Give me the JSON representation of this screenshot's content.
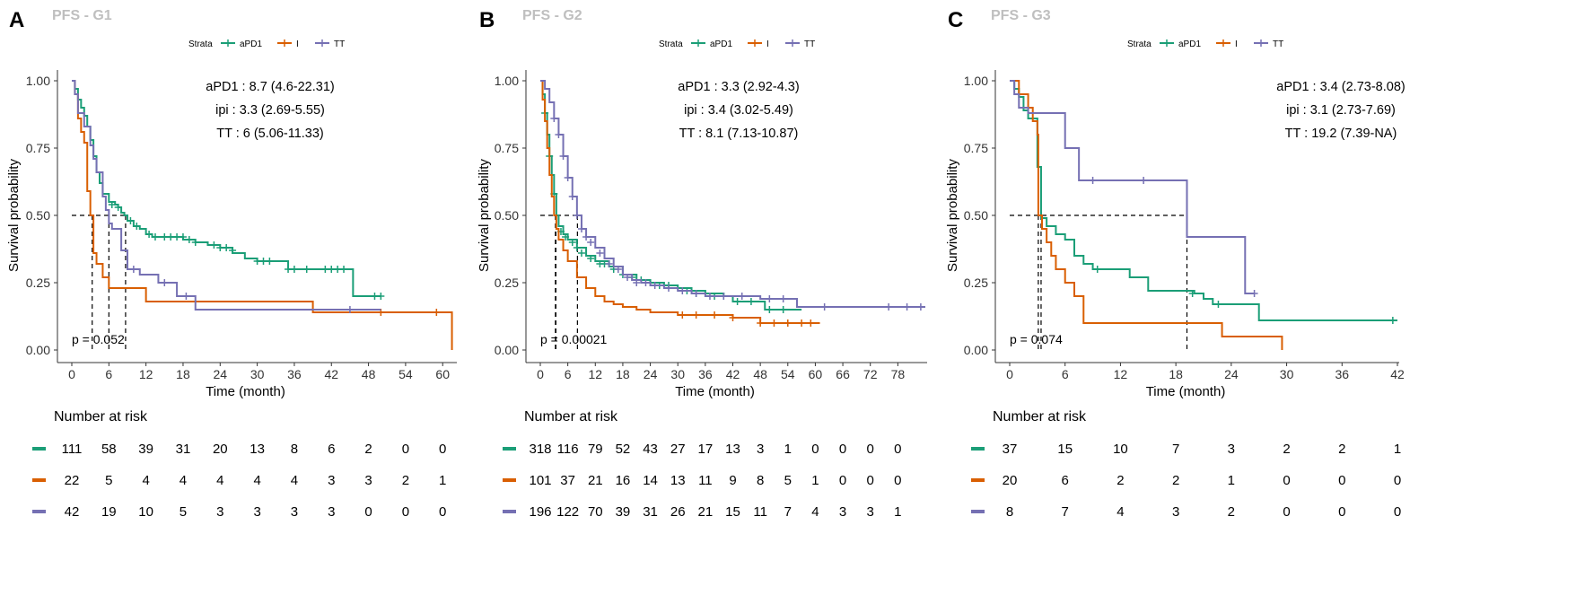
{
  "colors": {
    "aPD1": "#1b9e77",
    "I": "#d95f02",
    "TT": "#7570b3",
    "axis": "#333333",
    "panel_title": "#bfbfbf"
  },
  "chart_data": [
    {
      "type": "line",
      "panel_letter": "A",
      "title": "PFS - G1",
      "legend_title": "Strata",
      "xlabel": "Time (month)",
      "ylabel": "Survival probability",
      "xlim": [
        0,
        62
      ],
      "ylim": [
        0,
        1
      ],
      "xticks": [
        0,
        6,
        12,
        18,
        24,
        30,
        36,
        42,
        48,
        54,
        60
      ],
      "yticks": [
        0,
        0.25,
        0.5,
        0.75,
        1
      ],
      "ytick_labels": [
        "0.00",
        "0.25",
        "0.50",
        "0.75",
        "1.00"
      ],
      "annotations": [
        "aPD1 : 8.7 (4.6-22.31)",
        "ipi : 3.3 (2.69-5.55)",
        "TT : 6 (5.06-11.33)"
      ],
      "pvalue_text": "p = 0.052",
      "medians": [
        8.7,
        3.3,
        6
      ],
      "series": [
        {
          "name": "aPD1",
          "color_key": "aPD1",
          "x": [
            0,
            0.5,
            1,
            1.5,
            2,
            2.5,
            3,
            3.5,
            4,
            4.5,
            5,
            6,
            7,
            7.5,
            8,
            8.5,
            9,
            10,
            11,
            12,
            13,
            14,
            16,
            18,
            20,
            22,
            24,
            26,
            28,
            30,
            32,
            34,
            35,
            40,
            45,
            45.5,
            50
          ],
          "y": [
            1,
            0.97,
            0.93,
            0.9,
            0.87,
            0.83,
            0.78,
            0.72,
            0.66,
            0.62,
            0.58,
            0.55,
            0.54,
            0.53,
            0.51,
            0.5,
            0.48,
            0.46,
            0.45,
            0.43,
            0.42,
            0.42,
            0.42,
            0.41,
            0.4,
            0.39,
            0.38,
            0.36,
            0.34,
            0.33,
            0.33,
            0.33,
            0.3,
            0.3,
            0.3,
            0.2,
            0.2
          ],
          "censor_x": [
            6.5,
            7.5,
            9.5,
            10.5,
            12.5,
            13.5,
            15,
            16,
            17,
            18,
            19,
            20,
            23,
            24,
            25,
            26,
            30,
            31,
            32,
            35,
            36,
            38,
            41,
            42,
            43,
            44,
            49,
            50
          ],
          "censor_y": [
            0.54,
            0.53,
            0.48,
            0.46,
            0.43,
            0.42,
            0.42,
            0.42,
            0.42,
            0.42,
            0.41,
            0.4,
            0.39,
            0.38,
            0.38,
            0.37,
            0.33,
            0.33,
            0.33,
            0.3,
            0.3,
            0.3,
            0.3,
            0.3,
            0.3,
            0.3,
            0.2,
            0.2
          ]
        },
        {
          "name": "I",
          "color_key": "I",
          "x": [
            0,
            0.5,
            1,
            1.5,
            2,
            2.5,
            3,
            3.5,
            4,
            5,
            6,
            12,
            39,
            61,
            61.5
          ],
          "y": [
            1,
            0.95,
            0.86,
            0.81,
            0.77,
            0.59,
            0.5,
            0.36,
            0.32,
            0.27,
            0.23,
            0.18,
            0.14,
            0.14,
            0
          ],
          "censor_x": [
            50,
            59
          ],
          "censor_y": [
            0.14,
            0.14
          ]
        },
        {
          "name": "TT",
          "color_key": "TT",
          "x": [
            0,
            0.5,
            1,
            2,
            3,
            3.5,
            4,
            5,
            5.5,
            6,
            6.5,
            8,
            9,
            11,
            14,
            17,
            19,
            20,
            50
          ],
          "y": [
            1,
            0.95,
            0.88,
            0.83,
            0.76,
            0.71,
            0.66,
            0.57,
            0.52,
            0.47,
            0.45,
            0.37,
            0.3,
            0.28,
            0.25,
            0.2,
            0.2,
            0.15,
            0.15
          ],
          "censor_x": [
            10,
            15,
            18.5,
            45
          ],
          "censor_y": [
            0.3,
            0.25,
            0.2,
            0.15
          ]
        }
      ],
      "risk_table": {
        "title": "Number at risk",
        "times": [
          0,
          6,
          12,
          18,
          24,
          30,
          36,
          42,
          48,
          54,
          60
        ],
        "rows": [
          {
            "strata": "aPD1",
            "values": [
              111,
              58,
              39,
              31,
              20,
              13,
              8,
              6,
              2,
              0,
              0
            ]
          },
          {
            "strata": "I",
            "values": [
              22,
              5,
              4,
              4,
              4,
              4,
              4,
              3,
              3,
              2,
              1
            ]
          },
          {
            "strata": "TT",
            "values": [
              42,
              19,
              10,
              5,
              3,
              3,
              3,
              3,
              0,
              0,
              0
            ]
          }
        ]
      }
    },
    {
      "type": "line",
      "panel_letter": "B",
      "title": "PFS - G2",
      "legend_title": "Strata",
      "xlabel": "Time (month)",
      "ylabel": "Survival probability",
      "xlim": [
        0,
        84
      ],
      "ylim": [
        0,
        1
      ],
      "xticks": [
        0,
        6,
        12,
        18,
        24,
        30,
        36,
        42,
        48,
        54,
        60,
        66,
        72,
        78
      ],
      "yticks": [
        0,
        0.25,
        0.5,
        0.75,
        1
      ],
      "ytick_labels": [
        "0.00",
        "0.25",
        "0.50",
        "0.75",
        "1.00"
      ],
      "annotations": [
        "aPD1 : 3.3 (2.92-4.3)",
        "ipi : 3.4 (3.02-5.49)",
        "TT : 8.1 (7.13-10.87)"
      ],
      "pvalue_text": "p = 0.00021",
      "medians": [
        3.3,
        3.4,
        8.1
      ],
      "series": [
        {
          "name": "aPD1",
          "color_key": "aPD1",
          "x": [
            0,
            0.5,
            1,
            1.5,
            2,
            2.5,
            3,
            3.5,
            4,
            5,
            6,
            8,
            10,
            12,
            15,
            18,
            21,
            24,
            27,
            30,
            33,
            36,
            40,
            42,
            48,
            49,
            54,
            57
          ],
          "y": [
            1,
            0.95,
            0.88,
            0.8,
            0.72,
            0.65,
            0.58,
            0.5,
            0.46,
            0.43,
            0.41,
            0.38,
            0.35,
            0.33,
            0.31,
            0.28,
            0.26,
            0.25,
            0.24,
            0.23,
            0.22,
            0.21,
            0.2,
            0.18,
            0.18,
            0.15,
            0.15,
            0.15
          ],
          "censor_x": [
            1,
            2,
            3,
            4.5,
            5.5,
            7,
            8,
            9,
            11,
            13,
            14,
            16,
            18,
            20,
            22,
            24,
            26,
            28,
            30,
            32,
            34,
            36,
            38,
            40,
            43,
            46,
            50,
            53
          ],
          "censor_y": [
            0.88,
            0.72,
            0.58,
            0.44,
            0.42,
            0.4,
            0.38,
            0.36,
            0.34,
            0.32,
            0.32,
            0.3,
            0.28,
            0.27,
            0.26,
            0.25,
            0.24,
            0.24,
            0.23,
            0.22,
            0.21,
            0.21,
            0.2,
            0.2,
            0.18,
            0.18,
            0.15,
            0.15
          ]
        },
        {
          "name": "I",
          "color_key": "I",
          "x": [
            0,
            0.5,
            1,
            1.5,
            2,
            2.5,
            3,
            3.5,
            4,
            5,
            6,
            8,
            10,
            12,
            14,
            16,
            18,
            21,
            24,
            30,
            36,
            42,
            48,
            55,
            61
          ],
          "y": [
            1,
            0.93,
            0.85,
            0.75,
            0.65,
            0.57,
            0.5,
            0.45,
            0.41,
            0.37,
            0.33,
            0.27,
            0.23,
            0.2,
            0.18,
            0.17,
            0.16,
            0.15,
            0.14,
            0.13,
            0.13,
            0.12,
            0.1,
            0.1,
            0.1
          ],
          "censor_x": [
            31,
            34,
            38,
            42,
            48,
            51,
            54,
            57,
            59
          ],
          "censor_y": [
            0.13,
            0.13,
            0.13,
            0.12,
            0.1,
            0.1,
            0.1,
            0.1,
            0.1
          ]
        },
        {
          "name": "TT",
          "color_key": "TT",
          "x": [
            0,
            1,
            2,
            3,
            4,
            5,
            6,
            7,
            8,
            9,
            10,
            12,
            14,
            16,
            18,
            20,
            22,
            24,
            27,
            30,
            33,
            36,
            42,
            48,
            56,
            60,
            70,
            84
          ],
          "y": [
            1,
            0.97,
            0.92,
            0.86,
            0.8,
            0.72,
            0.64,
            0.57,
            0.5,
            0.45,
            0.42,
            0.38,
            0.34,
            0.31,
            0.28,
            0.26,
            0.25,
            0.24,
            0.23,
            0.22,
            0.21,
            0.2,
            0.2,
            0.19,
            0.16,
            0.16,
            0.16,
            0.16
          ],
          "censor_x": [
            3,
            4,
            5,
            6,
            7,
            8,
            9,
            10,
            11,
            13,
            15,
            17,
            19,
            21,
            23,
            25,
            28,
            31,
            34,
            37,
            40,
            44,
            50,
            53,
            62,
            76,
            80,
            83
          ],
          "censor_y": [
            0.86,
            0.8,
            0.72,
            0.64,
            0.57,
            0.5,
            0.45,
            0.42,
            0.4,
            0.36,
            0.32,
            0.3,
            0.27,
            0.25,
            0.25,
            0.24,
            0.23,
            0.22,
            0.21,
            0.2,
            0.2,
            0.2,
            0.19,
            0.19,
            0.16,
            0.16,
            0.16,
            0.16
          ]
        }
      ],
      "risk_table": {
        "title": "Number at risk",
        "times": [
          0,
          6,
          12,
          18,
          24,
          30,
          36,
          42,
          48,
          54,
          60,
          66,
          72,
          78
        ],
        "rows": [
          {
            "strata": "aPD1",
            "values": [
              318,
              116,
              79,
              52,
              43,
              27,
              17,
              13,
              3,
              1,
              0,
              0,
              0,
              0
            ]
          },
          {
            "strata": "I",
            "values": [
              101,
              37,
              21,
              16,
              14,
              13,
              11,
              9,
              8,
              5,
              1,
              0,
              0,
              0
            ]
          },
          {
            "strata": "TT",
            "values": [
              196,
              122,
              70,
              39,
              31,
              26,
              21,
              15,
              11,
              7,
              4,
              3,
              3,
              1
            ]
          }
        ]
      }
    },
    {
      "type": "line",
      "panel_letter": "C",
      "title": "PFS - G3",
      "legend_title": "Strata",
      "xlabel": "Time (month)",
      "ylabel": "Survival probability",
      "xlim": [
        0,
        42
      ],
      "ylim": [
        0,
        1
      ],
      "xticks": [
        0,
        6,
        12,
        18,
        24,
        30,
        36,
        42
      ],
      "yticks": [
        0,
        0.25,
        0.5,
        0.75,
        1
      ],
      "ytick_labels": [
        "0.00",
        "0.25",
        "0.50",
        "0.75",
        "1.00"
      ],
      "annotations": [
        "aPD1 : 3.4 (2.73-8.08)",
        "ipi : 3.1 (2.73-7.69)",
        "TT : 19.2 (7.39-NA)"
      ],
      "pvalue_text": "p = 0.074",
      "medians": [
        3.4,
        3.1,
        19.2
      ],
      "series": [
        {
          "name": "aPD1",
          "color_key": "aPD1",
          "x": [
            0,
            0.5,
            1,
            1.5,
            2,
            3,
            3.4,
            4,
            5,
            6,
            7,
            8,
            9,
            12,
            13,
            14,
            15,
            19,
            20,
            21,
            22,
            26,
            27,
            40,
            42
          ],
          "y": [
            1,
            0.97,
            0.94,
            0.89,
            0.86,
            0.68,
            0.49,
            0.46,
            0.43,
            0.41,
            0.35,
            0.32,
            0.3,
            0.3,
            0.27,
            0.27,
            0.22,
            0.22,
            0.21,
            0.19,
            0.17,
            0.17,
            0.11,
            0.11,
            0.11
          ],
          "censor_x": [
            9.5,
            19.8,
            22.6,
            41.5
          ],
          "censor_y": [
            0.3,
            0.21,
            0.17,
            0.11
          ]
        },
        {
          "name": "I",
          "color_key": "I",
          "x": [
            0,
            1,
            2,
            2.5,
            3,
            3.1,
            3.5,
            4,
            4.5,
            5,
            6,
            7,
            8,
            11,
            12,
            17,
            23,
            29.5
          ],
          "y": [
            1,
            0.95,
            0.9,
            0.85,
            0.8,
            0.5,
            0.45,
            0.4,
            0.35,
            0.3,
            0.25,
            0.2,
            0.1,
            0.1,
            0.1,
            0.1,
            0.05,
            0
          ],
          "censor_x": [],
          "censor_y": []
        },
        {
          "name": "TT",
          "color_key": "TT",
          "x": [
            0,
            0.5,
            1,
            2,
            3,
            5,
            6,
            6.5,
            7,
            7.5,
            8,
            14,
            19.2,
            22,
            25.5,
            26.5
          ],
          "y": [
            1,
            0.95,
            0.9,
            0.88,
            0.88,
            0.88,
            0.75,
            0.75,
            0.75,
            0.63,
            0.63,
            0.63,
            0.42,
            0.42,
            0.21,
            0.21
          ],
          "censor_x": [
            9,
            14.5,
            26.5
          ],
          "censor_y": [
            0.63,
            0.63,
            0.21
          ]
        }
      ],
      "risk_table": {
        "title": "Number at risk",
        "times": [
          0,
          6,
          12,
          18,
          24,
          30,
          36,
          42
        ],
        "rows": [
          {
            "strata": "aPD1",
            "values": [
              37,
              15,
              10,
              7,
              3,
              2,
              2,
              1
            ]
          },
          {
            "strata": "I",
            "values": [
              20,
              6,
              2,
              2,
              1,
              0,
              0,
              0
            ]
          },
          {
            "strata": "TT",
            "values": [
              8,
              7,
              4,
              3,
              2,
              0,
              0,
              0
            ]
          }
        ]
      }
    }
  ]
}
